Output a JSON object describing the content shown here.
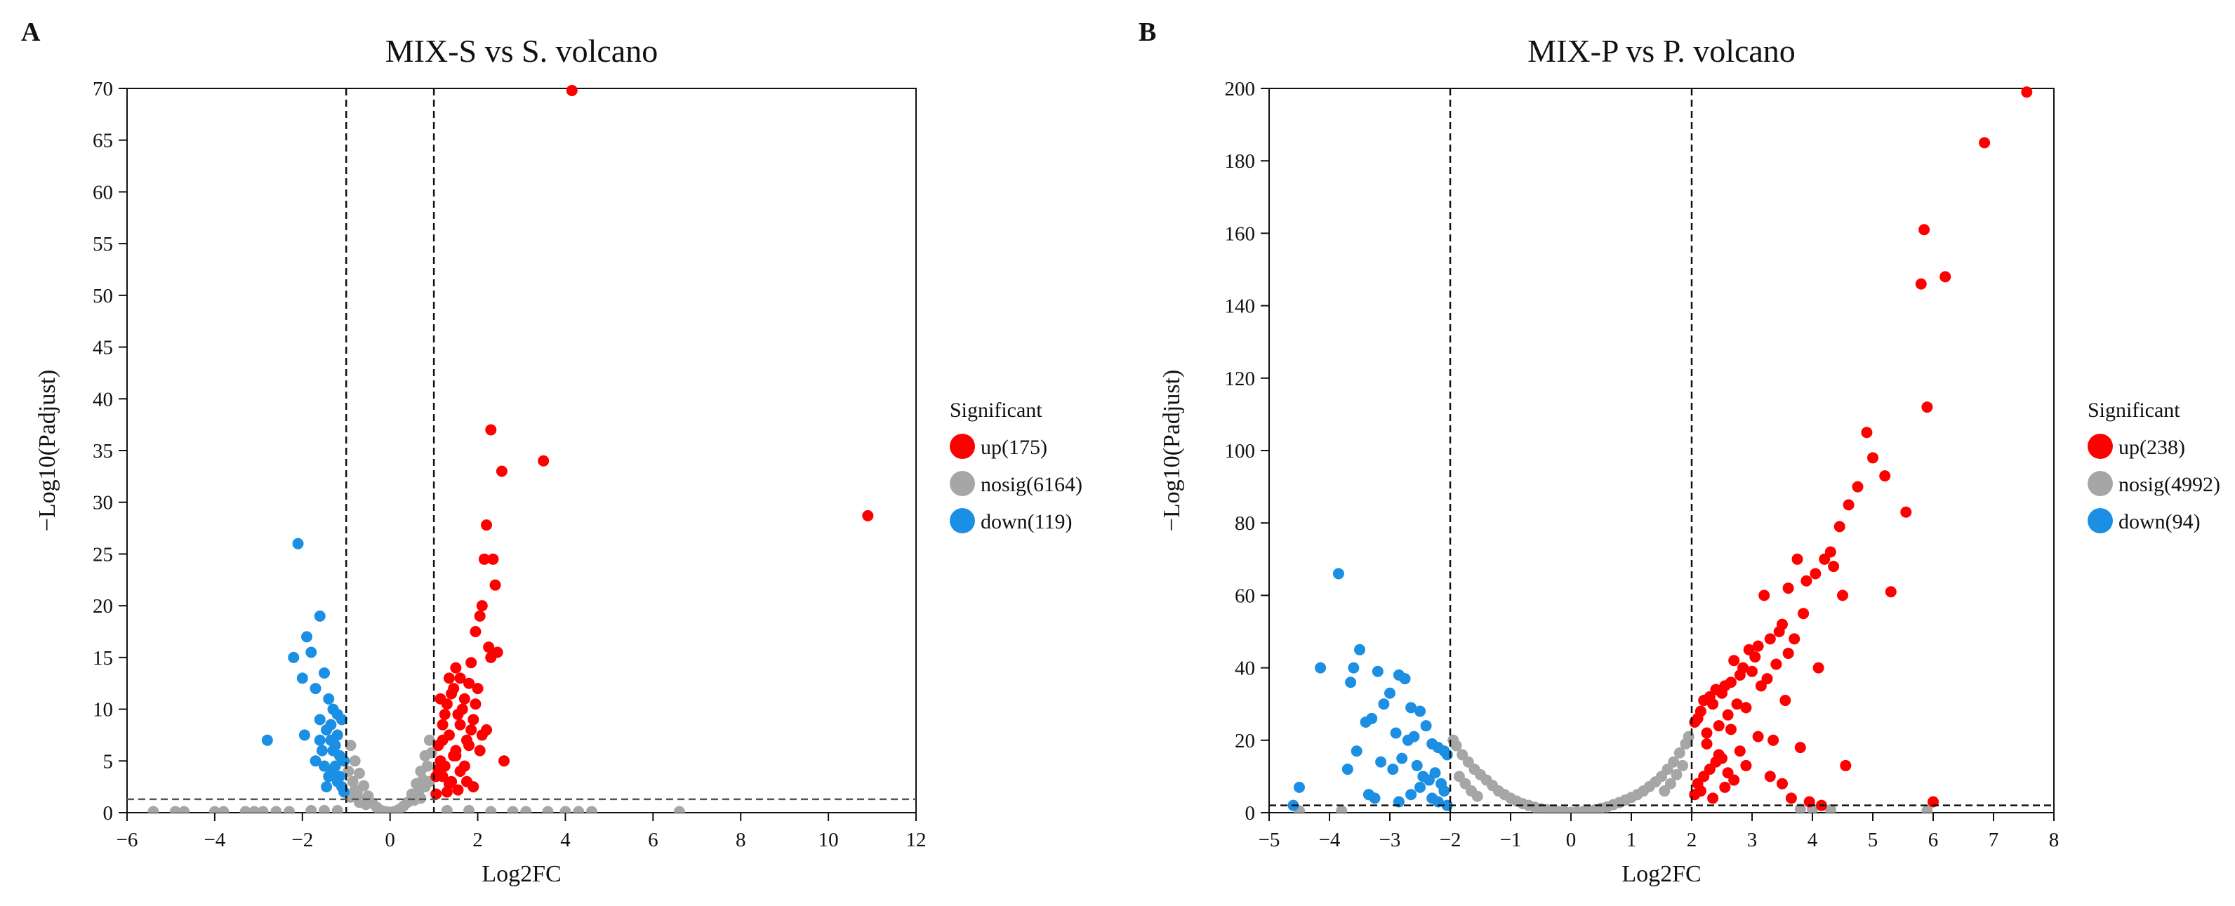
{
  "chart_data": [
    {
      "panel_label": "A",
      "type": "scatter",
      "title": "MIX-S vs S. volcano",
      "xlabel": "Log2FC",
      "ylabel": "−Log10(Padjust)",
      "xlim": [
        -6,
        12
      ],
      "ylim": [
        0,
        70
      ],
      "x_ticks": [
        -6,
        -4,
        -2,
        0,
        2,
        4,
        6,
        8,
        10,
        12
      ],
      "y_ticks": [
        0,
        5,
        10,
        15,
        20,
        25,
        30,
        35,
        40,
        45,
        50,
        55,
        60,
        65,
        70
      ],
      "x_tick_labels": [
        "−6",
        "−4",
        "−2",
        "0",
        "2",
        "4",
        "6",
        "8",
        "10",
        "12"
      ],
      "y_tick_labels": [
        "0",
        "5",
        "10",
        "15",
        "20",
        "25",
        "30",
        "35",
        "40",
        "45",
        "50",
        "55",
        "60",
        "65",
        "70"
      ],
      "vlines": [
        -1,
        1
      ],
      "hline": 1.3,
      "legend_title": "Significant",
      "legend_position": "right",
      "series": [
        {
          "name": "up",
          "label": "up(175)",
          "color": "#ff0000",
          "x": [
            4.15,
            10.9,
            2.3,
            3.5,
            2.55,
            2.2,
            2.15,
            2.35,
            2.4,
            2.05,
            2.25,
            2.1,
            1.95,
            2.45,
            2.6,
            1.5,
            1.6,
            1.8,
            2.0,
            1.7,
            1.3,
            1.4,
            1.9,
            2.3,
            1.85,
            1.55,
            1.35,
            1.2,
            1.1,
            1.65,
            1.75,
            2.05,
            1.45,
            1.25,
            1.15,
            2.2,
            1.05,
            1.6,
            1.4,
            1.9,
            1.3,
            1.8,
            1.5,
            1.2,
            2.1,
            1.7,
            1.35,
            1.05,
            1.25,
            1.55,
            1.95,
            1.45,
            1.15,
            1.6,
            1.75,
            1.35,
            1.1,
            1.85,
            1.2,
            1.5
          ],
          "y": [
            69.8,
            28.7,
            37.0,
            34.0,
            33.0,
            27.8,
            24.5,
            24.5,
            22.0,
            19.0,
            16.0,
            20.0,
            17.5,
            15.5,
            5.0,
            14.0,
            13.0,
            12.5,
            12.0,
            11.0,
            10.5,
            11.5,
            9.0,
            15.0,
            8.0,
            9.5,
            7.5,
            8.5,
            6.5,
            10.0,
            7.0,
            6.0,
            5.5,
            4.5,
            5.0,
            8.0,
            3.5,
            4.0,
            3.0,
            2.5,
            2.0,
            6.5,
            6.0,
            3.5,
            7.5,
            4.5,
            2.8,
            1.8,
            9.5,
            2.2,
            10.5,
            12.0,
            11.0,
            8.5,
            3.0,
            13.0,
            4.2,
            14.5,
            7.0,
            5.5
          ]
        },
        {
          "name": "nosig",
          "label": "nosig(6164)",
          "color": "#a6a6a6",
          "x": [
            -5.4,
            -4.9,
            -4.7,
            -4.0,
            -3.8,
            -3.3,
            -3.1,
            -2.9,
            -2.6,
            -2.3,
            -1.8,
            -1.5,
            -1.2,
            1.3,
            1.8,
            2.3,
            2.8,
            3.1,
            3.6,
            4.0,
            4.3,
            4.6,
            6.6,
            -0.9,
            -0.8,
            -0.7,
            -0.6,
            -0.5,
            -0.4,
            -0.3,
            -0.2,
            -0.1,
            0.0,
            0.1,
            0.2,
            0.3,
            0.4,
            0.5,
            0.6,
            0.7,
            0.8,
            0.9,
            -0.95,
            -0.85,
            -0.75,
            -0.65,
            -0.55,
            0.55,
            0.65,
            0.75,
            0.85,
            0.95,
            -0.9,
            -0.8,
            0.8,
            0.9,
            -0.7,
            0.7
          ],
          "y": [
            0.1,
            0.1,
            0.1,
            0.1,
            0.1,
            0.1,
            0.1,
            0.1,
            0.1,
            0.1,
            0.2,
            0.2,
            0.2,
            0.2,
            0.2,
            0.1,
            0.1,
            0.1,
            0.1,
            0.1,
            0.1,
            0.1,
            0.1,
            6.5,
            5.0,
            3.8,
            2.6,
            1.6,
            0.9,
            0.5,
            0.2,
            0.1,
            0.05,
            0.1,
            0.3,
            0.6,
            1.0,
            1.8,
            2.8,
            4.0,
            5.5,
            7.0,
            4.0,
            3.0,
            2.0,
            1.2,
            0.8,
            1.2,
            2.0,
            3.2,
            4.5,
            5.8,
            1.5,
            2.2,
            2.5,
            3.0,
            1.0,
            1.4
          ]
        },
        {
          "name": "down",
          "label": "down(119)",
          "color": "#1a8fe3",
          "x": [
            -2.1,
            -1.6,
            -1.9,
            -2.2,
            -1.8,
            -2.0,
            -1.5,
            -1.7,
            -1.4,
            -1.3,
            -2.8,
            -1.95,
            -1.6,
            -1.45,
            -1.2,
            -1.1,
            -1.35,
            -1.55,
            -1.25,
            -1.15,
            -1.05,
            -1.5,
            -1.3,
            -1.4,
            -1.2,
            -1.1,
            -1.7,
            -1.6,
            -1.35,
            -1.25,
            -1.15,
            -1.05,
            -1.45,
            -1.3,
            -1.2
          ],
          "y": [
            26.0,
            19.0,
            17.0,
            15.0,
            15.5,
            13.0,
            13.5,
            12.0,
            11.0,
            10.0,
            7.0,
            7.5,
            9.0,
            8.0,
            9.5,
            9.0,
            7.0,
            6.0,
            6.5,
            5.5,
            5.0,
            4.5,
            4.0,
            3.5,
            3.0,
            2.5,
            5.0,
            7.0,
            8.5,
            4.5,
            3.5,
            2.0,
            2.5,
            6.0,
            7.5
          ]
        }
      ]
    },
    {
      "panel_label": "B",
      "type": "scatter",
      "title": "MIX-P vs P. volcano",
      "xlabel": "Log2FC",
      "ylabel": "−Log10(Padjust)",
      "xlim": [
        -5,
        8
      ],
      "ylim": [
        0,
        200
      ],
      "x_ticks": [
        -5,
        -4,
        -3,
        -2,
        -1,
        0,
        1,
        2,
        3,
        4,
        5,
        6,
        7,
        8
      ],
      "y_ticks": [
        0,
        20,
        40,
        60,
        80,
        100,
        120,
        140,
        160,
        180,
        200
      ],
      "x_tick_labels": [
        "−5",
        "−4",
        "−3",
        "−2",
        "−1",
        "0",
        "1",
        "2",
        "3",
        "4",
        "5",
        "6",
        "7",
        "8"
      ],
      "y_tick_labels": [
        "0",
        "20",
        "40",
        "60",
        "80",
        "100",
        "120",
        "140",
        "160",
        "180",
        "200"
      ],
      "vlines": [
        -2,
        2
      ],
      "hline": 2,
      "legend_title": "Significant",
      "legend_position": "right",
      "series": [
        {
          "name": "up",
          "label": "up(238)",
          "color": "#ff0000",
          "x": [
            7.55,
            6.85,
            5.85,
            6.2,
            5.8,
            5.9,
            4.9,
            5.0,
            5.2,
            4.75,
            4.6,
            5.55,
            5.3,
            4.45,
            4.3,
            4.2,
            4.05,
            3.9,
            3.75,
            3.6,
            4.35,
            4.5,
            3.85,
            3.5,
            3.45,
            3.3,
            3.2,
            3.1,
            3.05,
            2.95,
            2.85,
            2.8,
            2.7,
            2.65,
            2.55,
            2.5,
            2.4,
            2.35,
            2.3,
            2.2,
            2.15,
            2.1,
            2.05,
            3.7,
            4.1,
            3.25,
            3.6,
            3.0,
            2.75,
            2.6,
            2.45,
            2.25,
            3.15,
            3.4,
            3.55,
            2.9,
            4.55,
            6.0,
            3.35,
            3.8,
            2.5,
            2.3,
            2.2,
            2.1,
            2.05,
            2.4,
            2.6,
            2.8,
            3.1,
            2.7,
            2.15,
            2.35,
            2.55,
            2.25,
            2.45,
            2.65,
            2.9,
            3.3,
            3.5,
            3.65,
            3.95,
            4.15
          ],
          "y": [
            199,
            185,
            161,
            148,
            146,
            112,
            105,
            98,
            93,
            90,
            85,
            83,
            61,
            79,
            72,
            70,
            66,
            64,
            70,
            62,
            68,
            60,
            55,
            52,
            50,
            48,
            60,
            46,
            43,
            45,
            40,
            38,
            42,
            36,
            35,
            33,
            34,
            30,
            32,
            31,
            28,
            26,
            25,
            48,
            40,
            37,
            44,
            39,
            30,
            27,
            24,
            22,
            35,
            41,
            31,
            29,
            13,
            3,
            20,
            18,
            15,
            12,
            10,
            8,
            5,
            14,
            11,
            17,
            21,
            9,
            6,
            4,
            7,
            19,
            16,
            23,
            13,
            10,
            8,
            4,
            3,
            2
          ]
        },
        {
          "name": "nosig",
          "label": "nosig(4992)",
          "color": "#a6a6a6",
          "x": [
            -1.95,
            -1.9,
            -1.8,
            -1.7,
            -1.6,
            -1.5,
            -1.4,
            -1.3,
            -1.2,
            -1.1,
            -1.0,
            -0.9,
            -0.8,
            -0.7,
            -0.6,
            -0.5,
            -0.4,
            -0.3,
            -0.2,
            -0.1,
            0.0,
            0.1,
            0.2,
            0.3,
            0.4,
            0.5,
            0.6,
            0.7,
            0.8,
            0.9,
            1.0,
            1.1,
            1.2,
            1.3,
            1.4,
            1.5,
            1.6,
            1.7,
            1.8,
            1.9,
            1.95,
            -1.85,
            -1.75,
            -1.65,
            -1.55,
            1.55,
            1.65,
            1.75,
            1.85,
            3.8,
            4.0,
            4.3,
            5.9,
            -3.8,
            -4.5
          ],
          "y": [
            20.0,
            18.5,
            16.0,
            14.0,
            12.0,
            10.5,
            9.0,
            7.5,
            6.0,
            5.0,
            4.0,
            3.2,
            2.5,
            2.0,
            1.5,
            1.1,
            0.8,
            0.5,
            0.3,
            0.2,
            0.1,
            0.2,
            0.3,
            0.5,
            0.8,
            1.2,
            1.6,
            2.2,
            2.8,
            3.5,
            4.2,
            5.0,
            6.0,
            7.2,
            8.5,
            10.0,
            12.0,
            14.0,
            16.5,
            19.0,
            21.0,
            10.0,
            8.0,
            6.0,
            4.5,
            6.0,
            8.0,
            10.5,
            13.0,
            1.0,
            1.0,
            0.8,
            0.5,
            0.5,
            0.5
          ]
        },
        {
          "name": "down",
          "label": "down(94)",
          "color": "#1a8fe3",
          "x": [
            -3.85,
            -3.5,
            -4.15,
            -3.6,
            -3.2,
            -3.65,
            -2.85,
            -2.75,
            -3.0,
            -3.1,
            -2.65,
            -3.3,
            -3.4,
            -2.5,
            -2.4,
            -2.9,
            -2.7,
            -2.6,
            -2.3,
            -2.2,
            -2.1,
            -2.05,
            -3.55,
            -4.5,
            -4.6,
            -3.15,
            -2.95,
            -2.8,
            -2.55,
            -2.45,
            -2.35,
            -2.25,
            -2.15,
            -2.1,
            -3.35,
            -3.25,
            -2.85,
            -2.65,
            -2.5,
            -2.3,
            -2.2,
            -2.05,
            -3.7
          ],
          "y": [
            66,
            45,
            40,
            40,
            39,
            36,
            38,
            37,
            33,
            30,
            29,
            26,
            25,
            28,
            24,
            22,
            20,
            21,
            19,
            18,
            17,
            16,
            17,
            7,
            2,
            14,
            12,
            15,
            13,
            10,
            9,
            11,
            8,
            6,
            5,
            4,
            3,
            5,
            7,
            4,
            3,
            2,
            12
          ]
        }
      ]
    }
  ]
}
